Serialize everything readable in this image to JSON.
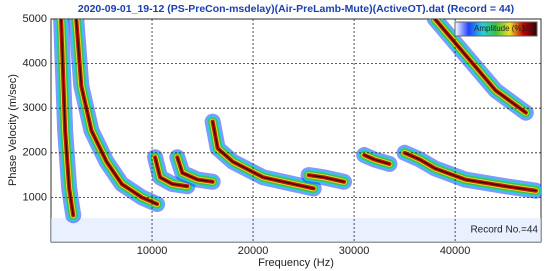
{
  "chart_data": {
    "type": "dispersion",
    "title": "2020-09-01_19-12 (PS-PreCon-msdelay)(Air-PreLamb-Mute)(ActiveOT).dat (Record = 44)",
    "x_label": "Frequency (Hz)",
    "y_label": "Phase Velocity (m/sec)",
    "xlim": [
      0,
      48500
    ],
    "ylim": [
      0,
      5000
    ],
    "xticks": [
      10000,
      20000,
      30000,
      40000
    ],
    "yticks": [
      1000,
      2000,
      3000,
      4000,
      5000
    ],
    "grid": true,
    "colormap": [
      "#ffffff",
      "#2040ff",
      "#20d0e0",
      "#40c040",
      "#f0e020",
      "#c00000",
      "#300000"
    ],
    "colorbar": {
      "label": "Amplitude (%)",
      "max_label": "100"
    },
    "annotation": "Record No.=44",
    "series": [
      {
        "x": [
          1000,
          1400,
          1800,
          2200
        ],
        "values": [
          5000,
          2500,
          1200,
          600
        ]
      },
      {
        "x": [
          2500,
          3000,
          4000,
          5500,
          7000,
          9000,
          10500
        ],
        "values": [
          5000,
          3500,
          2500,
          1800,
          1300,
          1000,
          850
        ]
      },
      {
        "x": [
          10300,
          10800,
          12000,
          13500
        ],
        "values": [
          1900,
          1450,
          1300,
          1250
        ]
      },
      {
        "x": [
          12500,
          13000,
          14500,
          16000
        ],
        "values": [
          1900,
          1550,
          1400,
          1350
        ]
      },
      {
        "x": [
          16000,
          16500,
          18000,
          21000,
          24000,
          26000
        ],
        "values": [
          2700,
          2100,
          1800,
          1450,
          1300,
          1200
        ]
      },
      {
        "x": [
          25500,
          27000,
          29000
        ],
        "values": [
          1500,
          1450,
          1350
        ]
      },
      {
        "x": [
          31000,
          32000,
          33500
        ],
        "values": [
          1950,
          1850,
          1750
        ]
      },
      {
        "x": [
          35000,
          36500,
          38000,
          41000,
          45000,
          48000
        ],
        "values": [
          2000,
          1850,
          1650,
          1400,
          1250,
          1150
        ]
      },
      {
        "x": [
          38000,
          41000,
          44000,
          47000
        ],
        "values": [
          5000,
          4200,
          3400,
          2900
        ]
      }
    ]
  }
}
